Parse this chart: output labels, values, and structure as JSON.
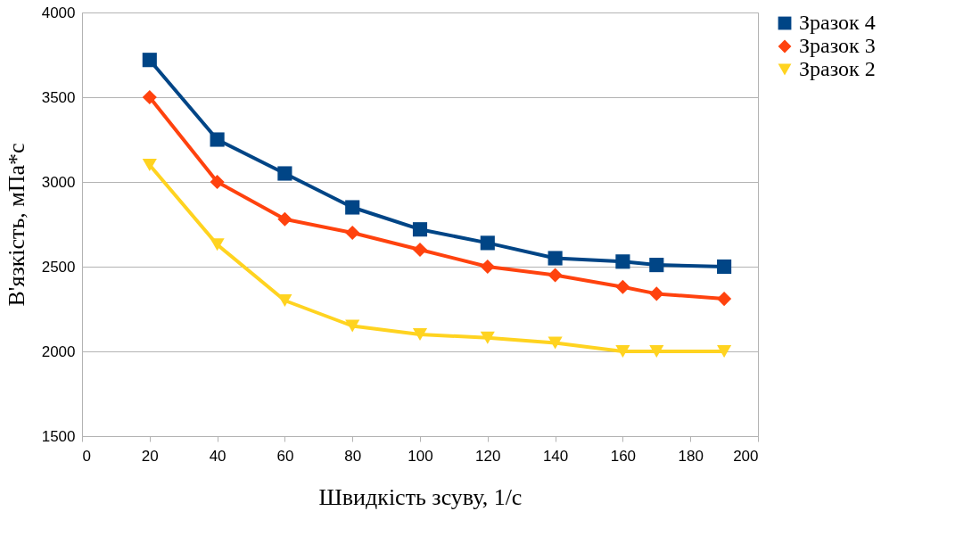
{
  "chart_data": {
    "type": "line",
    "xlabel": "Швидкість зсуву, 1/с",
    "ylabel": "В'язкість, мПа*с",
    "x": [
      20,
      40,
      60,
      80,
      100,
      120,
      140,
      160,
      170,
      190
    ],
    "series": [
      {
        "name": "Зразок 4",
        "color": "#004586",
        "marker": "square",
        "values": [
          3720,
          3250,
          3050,
          2850,
          2720,
          2640,
          2550,
          2530,
          2510,
          2500
        ]
      },
      {
        "name": "Зразок 3",
        "color": "#ff420e",
        "marker": "diamond",
        "values": [
          3500,
          3000,
          2780,
          2700,
          2600,
          2500,
          2450,
          2380,
          2340,
          2310
        ]
      },
      {
        "name": "Зразок 2",
        "color": "#ffd320",
        "marker": "triangle",
        "values": [
          3100,
          2630,
          2300,
          2150,
          2100,
          2080,
          2050,
          2000,
          2000,
          2000
        ]
      }
    ],
    "xlim": [
      0,
      200
    ],
    "xticks": [
      0,
      20,
      40,
      60,
      80,
      100,
      120,
      140,
      160,
      180,
      200
    ],
    "ylim": [
      1500,
      4000
    ],
    "yticks": [
      1500,
      2000,
      2500,
      3000,
      3500,
      4000
    ],
    "grid": "y",
    "legend": "right",
    "line_style": "solid"
  }
}
